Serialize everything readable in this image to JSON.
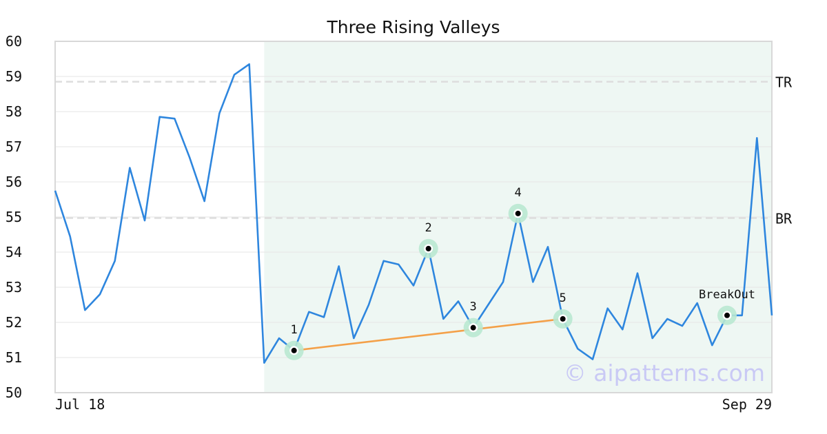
{
  "chart_data": {
    "type": "line",
    "title": "Three Rising Valleys",
    "xlabel": "",
    "ylabel": "",
    "ylim": [
      50,
      60
    ],
    "yticks": [
      "50",
      "51",
      "52",
      "53",
      "54",
      "55",
      "56",
      "57",
      "58",
      "59",
      "60"
    ],
    "xticks": [
      {
        "index": 0,
        "label": "Jul 18"
      },
      {
        "index": 48,
        "label": "Sep 29"
      }
    ],
    "grid": true,
    "series": [
      {
        "color": "#2e86de",
        "values": [
          55.75,
          54.45,
          52.35,
          52.8,
          53.75,
          56.4,
          54.9,
          57.85,
          57.8,
          56.7,
          55.45,
          57.95,
          59.05,
          59.35,
          50.85,
          51.55,
          51.2,
          52.3,
          52.15,
          53.6,
          51.55,
          52.5,
          53.75,
          53.65,
          53.05,
          54.1,
          52.1,
          52.6,
          51.85,
          52.5,
          53.15,
          55.1,
          53.15,
          54.15,
          52.1,
          51.25,
          50.95,
          52.4,
          51.8,
          53.4,
          51.55,
          52.1,
          51.9,
          52.55,
          51.35,
          52.2,
          52.2,
          57.25,
          52.2
        ]
      }
    ],
    "highlight_range": {
      "start": 14,
      "end": 48,
      "color": "#eef7f3"
    },
    "horizontal_lines": [
      {
        "label": "TR",
        "value": 58.85
      },
      {
        "label": "BR",
        "value": 54.97
      }
    ],
    "trendline": {
      "from_index": 16,
      "from_value": 51.2,
      "to_index": 34,
      "to_value": 52.1,
      "color": "#f4a048"
    },
    "points": [
      {
        "label": "1",
        "index": 16,
        "value": 51.2
      },
      {
        "label": "2",
        "index": 25,
        "value": 54.1
      },
      {
        "label": "3",
        "index": 28,
        "value": 51.85
      },
      {
        "label": "4",
        "index": 31,
        "value": 55.1
      },
      {
        "label": "5",
        "index": 34,
        "value": 52.1
      },
      {
        "label": "BreakOut",
        "index": 45,
        "value": 52.2
      }
    ],
    "watermark": "© aipatterns.com"
  }
}
